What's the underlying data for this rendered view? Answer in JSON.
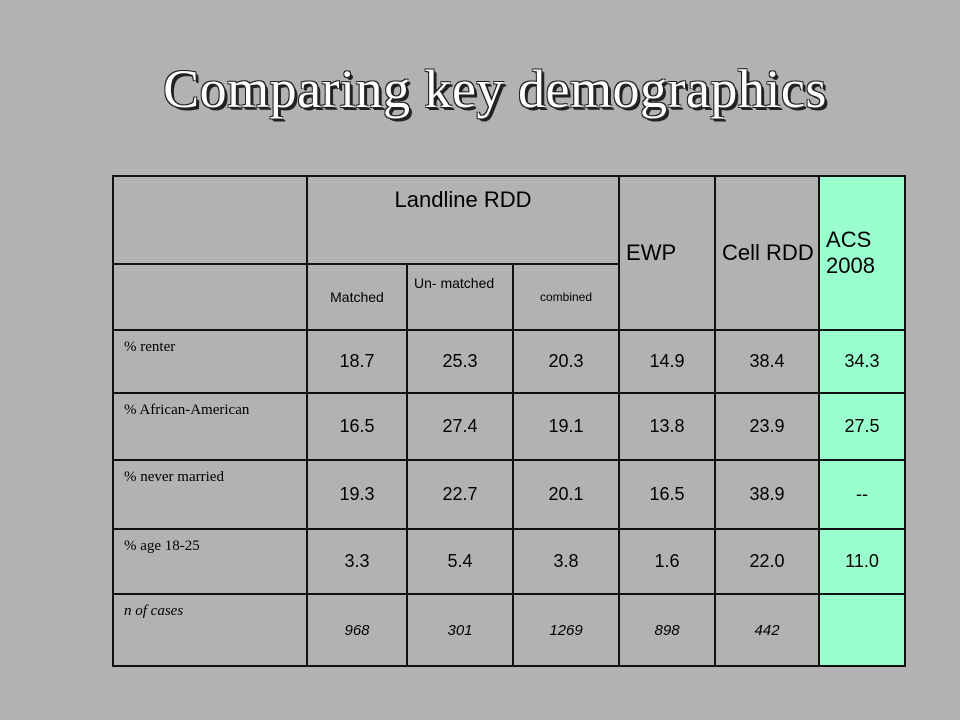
{
  "title": "Comparing key demographics",
  "header": {
    "landline": "Landline RDD",
    "ewp": "EWP",
    "cell": "Cell RDD",
    "acs": "ACS 2008",
    "matched": "Matched",
    "unmatched": "Un- matched",
    "combined": "combined"
  },
  "rows": [
    {
      "label": "% renter",
      "values": [
        "18.7",
        "25.3",
        "20.3",
        "14.9",
        "38.4",
        "34.3"
      ]
    },
    {
      "label": "% African-American",
      "values": [
        "16.5",
        "27.4",
        "19.1",
        "13.8",
        "23.9",
        "27.5"
      ]
    },
    {
      "label": "% never married",
      "values": [
        "19.3",
        "22.7",
        "20.1",
        "16.5",
        "38.9",
        "--"
      ]
    },
    {
      "label": "% age 18-25",
      "values": [
        "3.3",
        "5.4",
        "3.8",
        "1.6",
        "22.0",
        "11.0"
      ]
    }
  ],
  "cases": {
    "label": "n of cases",
    "values": [
      "968",
      "301",
      "1269",
      "898",
      "442",
      ""
    ]
  },
  "colors": {
    "background": "#b2b2b2",
    "acs_column": "#99ffcc",
    "title": "#ffffff"
  }
}
